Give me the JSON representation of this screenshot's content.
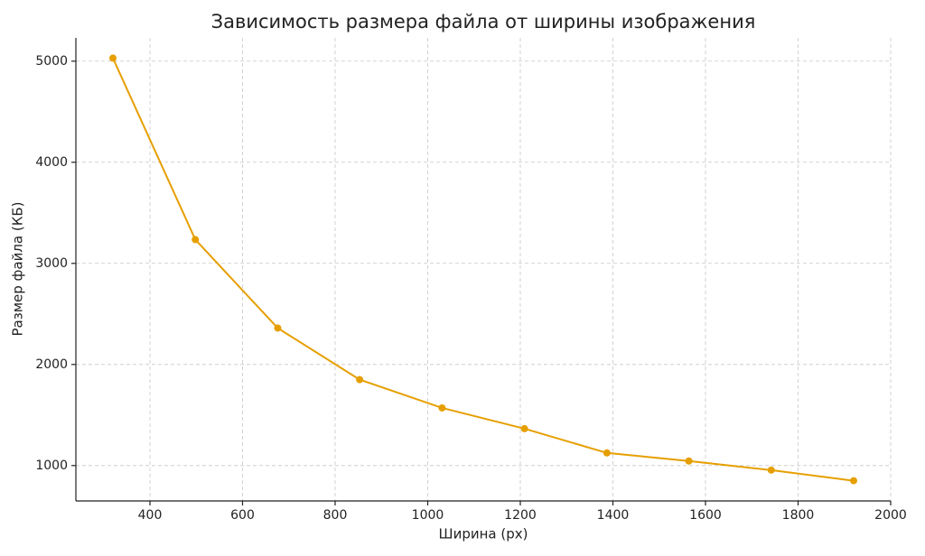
{
  "chart_data": {
    "type": "line",
    "title": "Зависимость размера файла от ширины изображения",
    "xlabel": "Ширина (px)",
    "ylabel": "Размер файла (КБ)",
    "x": [
      320,
      498,
      676,
      853,
      1031,
      1209,
      1387,
      1564,
      1742,
      1920
    ],
    "series": [
      {
        "color": "#e69f00",
        "values": [
          5030,
          3235,
          2360,
          1850,
          1570,
          1365,
          1125,
          1045,
          955,
          850
        ]
      }
    ],
    "xlim": [
      240,
      2000
    ],
    "xticks": [
      400,
      600,
      800,
      1000,
      1200,
      1400,
      1600,
      1800,
      2000
    ],
    "ylim": [
      650,
      5230
    ],
    "yticks": [
      1000,
      2000,
      3000,
      4000,
      5000
    ],
    "grid": true
  }
}
